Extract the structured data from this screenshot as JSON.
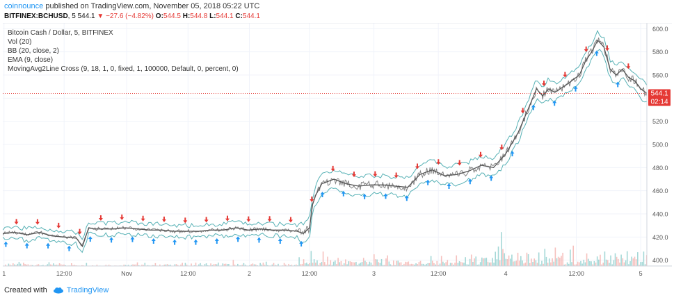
{
  "header": {
    "author": "coinnounce",
    "published": "published on TradingView.com, November 05, 2018 05:22 UTC"
  },
  "ticker": {
    "symbol": "BITFINEX:BCHUSD",
    "interval": "5",
    "last": "544.1",
    "change": "−27.6 (−4.82%)",
    "o_label": "O:",
    "o": "544.5",
    "h_label": "H:",
    "h": "544.8",
    "l_label": "L:",
    "l": "544.1",
    "c_label": "C:",
    "c": "544.1",
    "down_color": "#e53935"
  },
  "legend": {
    "title": "Bitcoin Cash / Dollar, 5, BITFINEX",
    "vol": "Vol (20)",
    "bb": "BB (20, close, 2)",
    "ema": "EMA (9, close)",
    "mac": "MovingAvg2Line Cross (9, 18, 1, 0, fixed, 1, 100000, Default, 0, percent, 0)"
  },
  "price_tag": {
    "price": "544.1",
    "countdown": "02:14",
    "color": "#e53935"
  },
  "footer": {
    "created_with": "Created with",
    "brand": "TradingView"
  },
  "chart_data": {
    "type": "line",
    "title": "Bitcoin Cash / Dollar, 5, BITFINEX",
    "ylim": [
      395,
      605
    ],
    "y_ticks": [
      400,
      420,
      440,
      460,
      480,
      500,
      520,
      540,
      560,
      580,
      600
    ],
    "x_range": [
      0,
      105
    ],
    "x_ticks": [
      {
        "x": 0.2,
        "label": "1"
      },
      {
        "x": 10,
        "label": "12:00"
      },
      {
        "x": 20.2,
        "label": "Nov"
      },
      {
        "x": 30.2,
        "label": "12:00"
      },
      {
        "x": 40.2,
        "label": "2"
      },
      {
        "x": 50,
        "label": "12:00"
      },
      {
        "x": 60.5,
        "label": "3"
      },
      {
        "x": 71,
        "label": "12:00"
      },
      {
        "x": 82,
        "label": "4"
      },
      {
        "x": 93.5,
        "label": "12:00"
      },
      {
        "x": 104,
        "label": "5"
      }
    ],
    "last_price": 544.1,
    "series": [
      {
        "name": "",
        "color": "#555555",
        "x": [
          0,
          2,
          4,
          6,
          8,
          10,
          12,
          13,
          14,
          15,
          16,
          18,
          20,
          22,
          24,
          26,
          28,
          30,
          32,
          34,
          36,
          38,
          40,
          42,
          44,
          46,
          48,
          49,
          50,
          50.5,
          51,
          52,
          54,
          56,
          58,
          60,
          62,
          64,
          66,
          68,
          70,
          72,
          74,
          76,
          78,
          80,
          82,
          84,
          86,
          87,
          88,
          89,
          90,
          92,
          94,
          95,
          96,
          97,
          98,
          99,
          100,
          101,
          102,
          103,
          104,
          105
        ],
        "y": [
          423,
          424,
          422,
          424,
          421,
          420,
          419,
          412,
          428,
          427,
          427,
          427,
          428,
          427,
          426,
          426,
          425,
          425,
          425,
          426,
          426,
          428,
          426,
          427,
          426,
          426,
          425,
          423,
          428,
          448,
          456,
          466,
          470,
          466,
          464,
          465,
          465,
          464,
          463,
          474,
          478,
          473,
          474,
          477,
          482,
          480,
          492,
          510,
          535,
          548,
          542,
          548,
          545,
          552,
          560,
          572,
          580,
          590,
          584,
          565,
          560,
          565,
          558,
          555,
          548,
          544.1
        ]
      }
    ]
  }
}
